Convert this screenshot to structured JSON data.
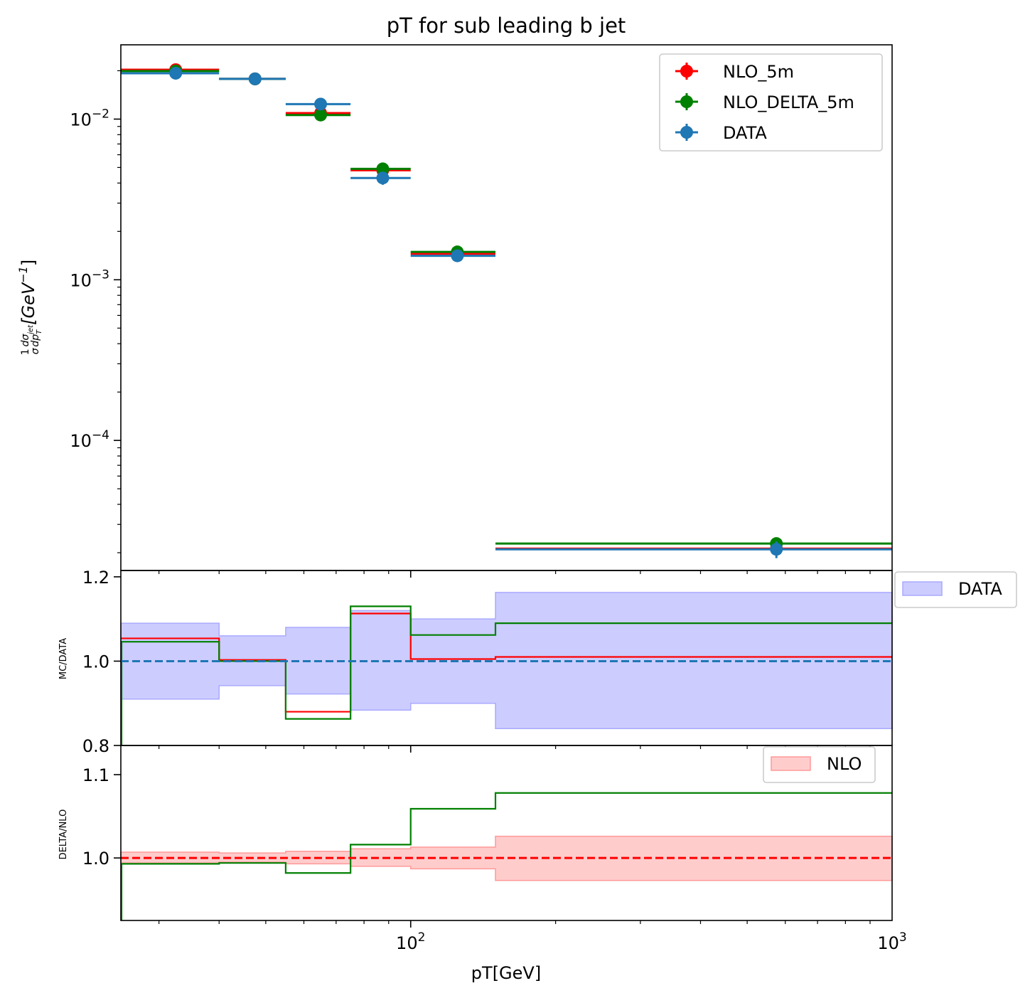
{
  "chart_data": [
    {
      "type": "scatter",
      "title": "pT for sub leading b jet",
      "ylabel": "1/σ dσ/dp_T^jet [GeV^-1]",
      "ylabel_parts": {
        "frac_num": "1",
        "frac_den": "σ",
        "dnum": "dσ",
        "dden": "dp",
        "sub": "T",
        "sup": "jet",
        "bracket_open": "[GeV",
        "exp": "−1",
        "bracket_close": "]"
      },
      "xscale": "log",
      "yscale": "log",
      "xlim": [
        25,
        1000
      ],
      "ylim": [
        1.55e-05,
        0.029
      ],
      "yticks": [
        {
          "value": 0.01,
          "base": "10",
          "exp": "−2"
        },
        {
          "value": 0.001,
          "base": "10",
          "exp": "−3"
        },
        {
          "value": 0.0001,
          "base": "10",
          "exp": "−4"
        }
      ],
      "bins": [
        [
          25,
          40
        ],
        [
          40,
          55
        ],
        [
          55,
          75
        ],
        [
          75,
          100
        ],
        [
          100,
          150
        ],
        [
          150,
          1000
        ]
      ],
      "series": [
        {
          "name": "NLO_5m",
          "color": "#ff0000",
          "x": [
            32.5,
            47.5,
            65,
            87.5,
            125,
            575
          ],
          "y": [
            0.0203,
            0.0178,
            0.0109,
            0.0048,
            0.00145,
            2.12e-05
          ]
        },
        {
          "name": "NLO_DELTA_5m",
          "color": "#008000",
          "x": [
            32.5,
            47.5,
            65,
            87.5,
            125,
            575
          ],
          "y": [
            0.0199,
            0.0178,
            0.0106,
            0.0049,
            0.00149,
            2.28e-05
          ]
        },
        {
          "name": "DATA",
          "color": "#1f77b4",
          "x": [
            32.5,
            47.5,
            65,
            87.5,
            125,
            575
          ],
          "y": [
            0.0193,
            0.0178,
            0.0124,
            0.0043,
            0.00141,
            2.1e-05
          ],
          "yerr": [
            0.0009,
            0.0008,
            0.0008,
            0.0004,
            7e-05,
            2.5e-06
          ]
        }
      ],
      "legend": "top-right"
    },
    {
      "type": "line",
      "ylabel": "MC/DATA",
      "xscale": "log",
      "xlim": [
        25,
        1000
      ],
      "ylim": [
        0.8,
        1.215
      ],
      "yticks": [
        {
          "value": 0.8,
          "label": "0.8"
        },
        {
          "value": 1.0,
          "label": "1.0"
        },
        {
          "value": 1.2,
          "label": "1.2"
        }
      ],
      "band": {
        "name": "DATA",
        "color": "#aaaaff",
        "lower": [
          0.91,
          0.942,
          0.922,
          0.884,
          0.9,
          0.84
        ],
        "upper": [
          1.09,
          1.06,
          1.08,
          1.12,
          1.1,
          1.163
        ]
      },
      "reference": 1.0,
      "series": [
        {
          "name": "NLO_5m",
          "color": "#ff0000",
          "values": [
            1.054,
            1.003,
            0.88,
            1.113,
            1.005,
            1.01
          ]
        },
        {
          "name": "NLO_DELTA_5m",
          "color": "#008000",
          "values": [
            1.046,
            1.0,
            0.863,
            1.13,
            1.062,
            1.09
          ]
        }
      ],
      "legend": "outside-right"
    },
    {
      "type": "line",
      "ylabel": "DELTA/NLO",
      "xlabel": "pT[GeV]",
      "xscale": "log",
      "xlim": [
        25,
        1000
      ],
      "ylim": [
        0.925,
        1.135
      ],
      "yticks": [
        {
          "value": 1.0,
          "label": "1.0"
        },
        {
          "value": 1.1,
          "label": "1.1"
        }
      ],
      "xticks": [
        {
          "value": 100,
          "base": "10",
          "exp": "2"
        },
        {
          "value": 1000,
          "base": "10",
          "exp": "3"
        }
      ],
      "band": {
        "name": "NLO",
        "color": "#ff9999",
        "lower": [
          0.994,
          0.995,
          0.993,
          0.99,
          0.987,
          0.973
        ],
        "upper": [
          1.007,
          1.006,
          1.008,
          1.011,
          1.013,
          1.026
        ]
      },
      "reference": 1.0,
      "series": [
        {
          "name": "NLO_DELTA_5m",
          "color": "#008000",
          "values": [
            0.993,
            0.994,
            0.982,
            1.016,
            1.059,
            1.078
          ]
        }
      ],
      "legend": "top-right"
    }
  ]
}
